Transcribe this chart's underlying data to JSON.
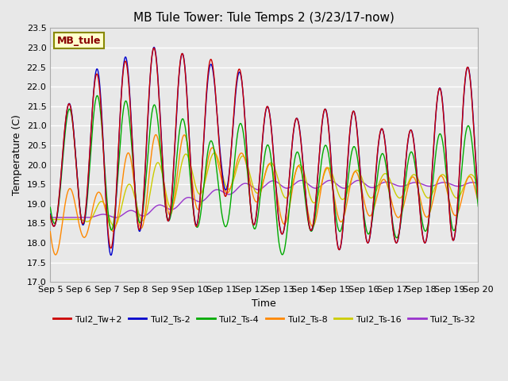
{
  "title": "MB Tule Tower: Tule Temps 2 (3/23/17-now)",
  "xlabel": "Time",
  "ylabel": "Temperature (C)",
  "ylim": [
    17.0,
    23.5
  ],
  "yticks": [
    17.0,
    17.5,
    18.0,
    18.5,
    19.0,
    19.5,
    20.0,
    20.5,
    21.0,
    21.5,
    22.0,
    22.5,
    23.0,
    23.5
  ],
  "xtick_labels": [
    "Sep 5",
    "Sep 6",
    "Sep 7",
    "Sep 8",
    "Sep 9",
    "Sep 10",
    "Sep 11",
    "Sep 12",
    "Sep 13",
    "Sep 14",
    "Sep 15",
    "Sep 16",
    "Sep 17",
    "Sep 18",
    "Sep 19",
    "Sep 20"
  ],
  "legend_labels": [
    "Tul2_Tw+2",
    "Tul2_Ts-2",
    "Tul2_Ts-4",
    "Tul2_Ts-8",
    "Tul2_Ts-16",
    "Tul2_Ts-32"
  ],
  "line_colors": [
    "#cc0000",
    "#0000cc",
    "#00aa00",
    "#ff8800",
    "#cccc00",
    "#9933cc"
  ],
  "annotation_text": "MB_tule",
  "annotation_bg": "#ffffcc",
  "annotation_border": "#888800",
  "bg_color": "#e8e8e8",
  "grid_color": "#ffffff",
  "title_fontsize": 11,
  "axis_fontsize": 9,
  "tick_fontsize": 8
}
